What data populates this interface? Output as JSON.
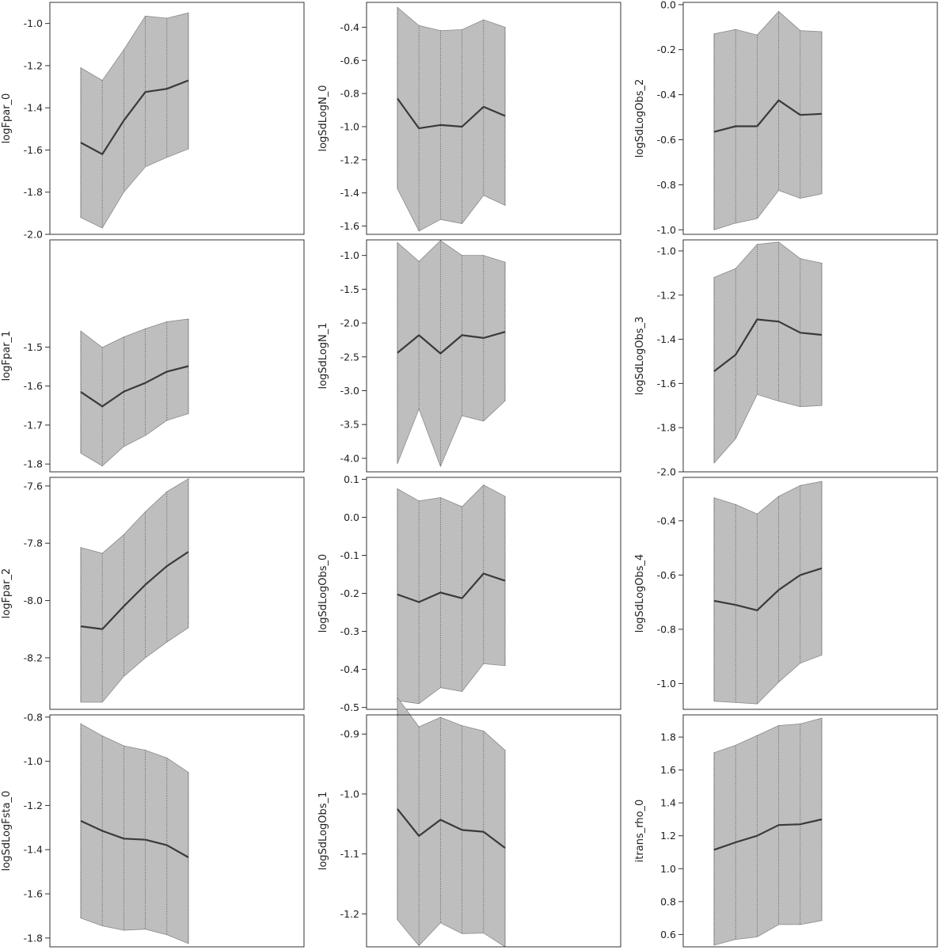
{
  "chart_data": [
    {
      "type": "area",
      "ylabel": "logFpar_0",
      "ylim": [
        -2.0,
        -0.9
      ],
      "yticks": [
        "-1.0",
        "-1.2",
        "-1.4",
        "-1.6",
        "-1.8",
        "-2.0"
      ],
      "x": [
        1,
        2,
        3,
        4,
        5,
        6
      ],
      "mean": [
        -1.565,
        -1.62,
        -1.46,
        -1.325,
        -1.31,
        -1.27
      ],
      "lower": [
        -1.92,
        -1.97,
        -1.8,
        -1.68,
        -1.635,
        -1.595
      ],
      "upper": [
        -1.21,
        -1.27,
        -1.125,
        -0.965,
        -0.975,
        -0.95
      ]
    },
    {
      "type": "area",
      "ylabel": "logSdLogN_0",
      "ylim": [
        -1.65,
        -0.25
      ],
      "yticks": [
        "-0.4",
        "-0.6",
        "-0.8",
        "-1.0",
        "-1.2",
        "-1.4",
        "-1.6"
      ],
      "x": [
        1,
        2,
        3,
        4,
        5,
        6
      ],
      "mean": [
        -0.83,
        -1.01,
        -0.99,
        -1.0,
        -0.88,
        -0.935
      ],
      "lower": [
        -1.375,
        -1.63,
        -1.56,
        -1.585,
        -1.415,
        -1.475
      ],
      "upper": [
        -0.28,
        -0.39,
        -0.42,
        -0.415,
        -0.355,
        -0.4
      ]
    },
    {
      "type": "area",
      "ylabel": "logSdLogObs_2",
      "ylim": [
        -1.02,
        0.01
      ],
      "yticks": [
        "0.0",
        "-0.2",
        "-0.4",
        "-0.6",
        "-0.8",
        "-1.0"
      ],
      "x": [
        1,
        2,
        3,
        4,
        5,
        6
      ],
      "mean": [
        -0.565,
        -0.54,
        -0.54,
        -0.425,
        -0.49,
        -0.485
      ],
      "lower": [
        -1.0,
        -0.97,
        -0.95,
        -0.825,
        -0.86,
        -0.84
      ],
      "upper": [
        -0.13,
        -0.11,
        -0.135,
        -0.03,
        -0.115,
        -0.12
      ]
    },
    {
      "type": "area",
      "ylabel": "logFpar_1",
      "ylim": [
        -1.82,
        -1.225
      ],
      "yticks": [
        "-1.5",
        "-1.6",
        "-1.7",
        "-1.8"
      ],
      "x": [
        1,
        2,
        3,
        4,
        5,
        6
      ],
      "mean": [
        -1.615,
        -1.652,
        -1.614,
        -1.592,
        -1.563,
        -1.549
      ],
      "lower": [
        -1.772,
        -1.805,
        -1.755,
        -1.727,
        -1.688,
        -1.671
      ],
      "upper": [
        -1.459,
        -1.501,
        -1.474,
        -1.453,
        -1.435,
        -1.428
      ]
    },
    {
      "type": "area",
      "ylabel": "logSdLogN_1",
      "ylim": [
        -4.2,
        -0.77
      ],
      "yticks": [
        "-1.0",
        "-1.5",
        "-2.0",
        "-2.5",
        "-3.0",
        "-3.5",
        "-4.0"
      ],
      "x": [
        1,
        2,
        3,
        4,
        5,
        6
      ],
      "mean": [
        -2.44,
        -2.18,
        -2.45,
        -2.18,
        -2.22,
        -2.13
      ],
      "lower": [
        -4.08,
        -3.27,
        -4.12,
        -3.37,
        -3.45,
        -3.15
      ],
      "upper": [
        -0.81,
        -1.09,
        -0.78,
        -1.0,
        -1.0,
        -1.1
      ]
    },
    {
      "type": "area",
      "ylabel": "logSdLogObs_3",
      "ylim": [
        -2.0,
        -0.95
      ],
      "yticks": [
        "-1.0",
        "-1.2",
        "-1.4",
        "-1.6",
        "-1.8",
        "-2.0"
      ],
      "x": [
        1,
        2,
        3,
        4,
        5,
        6
      ],
      "mean": [
        -1.545,
        -1.47,
        -1.31,
        -1.32,
        -1.37,
        -1.38
      ],
      "lower": [
        -1.96,
        -1.85,
        -1.65,
        -1.68,
        -1.705,
        -1.7
      ],
      "upper": [
        -1.12,
        -1.08,
        -0.97,
        -0.96,
        -1.035,
        -1.055
      ]
    },
    {
      "type": "area",
      "ylabel": "logFpar_2",
      "ylim": [
        -8.38,
        -7.57
      ],
      "yticks": [
        "-7.6",
        "-7.8",
        "-8.0",
        "-8.2"
      ],
      "x": [
        1,
        2,
        3,
        4,
        5,
        6
      ],
      "mean": [
        -8.09,
        -8.1,
        -8.02,
        -7.945,
        -7.88,
        -7.83
      ],
      "lower": [
        -8.355,
        -8.355,
        -8.265,
        -8.2,
        -8.145,
        -8.095
      ],
      "upper": [
        -7.815,
        -7.835,
        -7.77,
        -7.69,
        -7.62,
        -7.575
      ]
    },
    {
      "type": "area",
      "ylabel": "logSdLogObs_0",
      "ylim": [
        -0.505,
        0.105
      ],
      "yticks": [
        "0.1",
        "0.0",
        "-0.1",
        "-0.2",
        "-0.3",
        "-0.4",
        "-0.5"
      ],
      "x": [
        1,
        2,
        3,
        4,
        5,
        6
      ],
      "mean": [
        -0.203,
        -0.223,
        -0.198,
        -0.213,
        -0.148,
        -0.167
      ],
      "lower": [
        -0.482,
        -0.49,
        -0.448,
        -0.458,
        -0.385,
        -0.39
      ],
      "upper": [
        0.075,
        0.043,
        0.052,
        0.028,
        0.085,
        0.055
      ]
    },
    {
      "type": "area",
      "ylabel": "logSdLogObs_4",
      "ylim": [
        -1.095,
        -0.24
      ],
      "yticks": [
        "-0.4",
        "-0.6",
        "-0.8",
        "-1.0"
      ],
      "x": [
        1,
        2,
        3,
        4,
        5,
        6
      ],
      "mean": [
        -0.695,
        -0.71,
        -0.73,
        -0.655,
        -0.6,
        -0.575
      ],
      "lower": [
        -1.065,
        -1.07,
        -1.075,
        -0.995,
        -0.925,
        -0.895
      ],
      "upper": [
        -0.315,
        -0.34,
        -0.375,
        -0.31,
        -0.27,
        -0.255
      ]
    },
    {
      "type": "area",
      "ylabel": "logSdLogFsta_0",
      "ylim": [
        -1.84,
        -0.79
      ],
      "yticks": [
        "-0.8",
        "-1.0",
        "-1.2",
        "-1.4",
        "-1.6",
        "-1.8"
      ],
      "x": [
        1,
        2,
        3,
        4,
        5,
        6
      ],
      "mean": [
        -1.27,
        -1.315,
        -1.35,
        -1.355,
        -1.38,
        -1.435
      ],
      "lower": [
        -1.71,
        -1.745,
        -1.765,
        -1.76,
        -1.785,
        -1.825
      ],
      "upper": [
        -0.83,
        -0.885,
        -0.93,
        -0.95,
        -0.985,
        -1.05
      ]
    },
    {
      "type": "area",
      "ylabel": "logSdLogObs_1",
      "ylim": [
        -1.255,
        -0.868
      ],
      "yticks": [
        "-0.9",
        "-1.0",
        "-1.1",
        "-1.2"
      ],
      "x": [
        1,
        2,
        3,
        4,
        5,
        6
      ],
      "mean": [
        -1.025,
        -1.07,
        -1.043,
        -1.06,
        -1.063,
        -1.09
      ],
      "lower": [
        -1.21,
        -1.253,
        -1.215,
        -1.233,
        -1.232,
        -1.255
      ],
      "upper": [
        -0.839,
        -0.888,
        -0.872,
        -0.886,
        -0.895,
        -0.927
      ]
    },
    {
      "type": "area",
      "ylabel": "itrans_rho_0",
      "ylim": [
        0.525,
        1.935
      ],
      "yticks": [
        "1.8",
        "1.6",
        "1.4",
        "1.2",
        "1.0",
        "0.8",
        "0.6"
      ],
      "x": [
        1,
        2,
        3,
        4,
        5,
        6
      ],
      "mean": [
        1.115,
        1.16,
        1.2,
        1.265,
        1.27,
        1.3
      ],
      "lower": [
        0.535,
        0.57,
        0.585,
        0.66,
        0.66,
        0.685
      ],
      "upper": [
        1.705,
        1.75,
        1.81,
        1.87,
        1.88,
        1.915
      ]
    }
  ]
}
